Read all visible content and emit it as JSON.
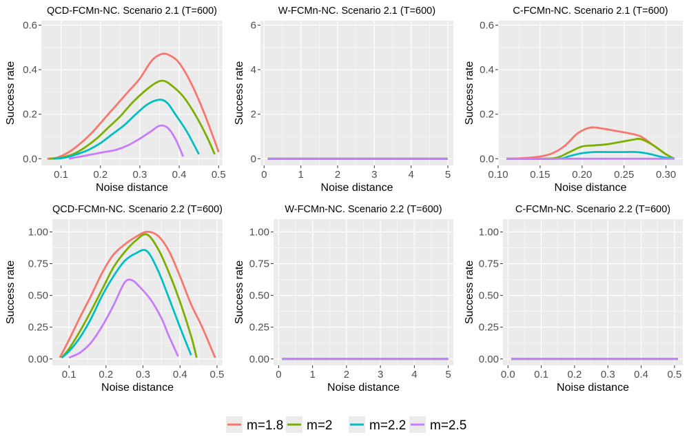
{
  "colors": {
    "m=1.8": "#F8766D",
    "m=2": "#7CAE00",
    "m=2.2": "#00BFC4",
    "m=2.5": "#C77CFF",
    "panel_background": "#EBEBEB",
    "grid": "#FFFFFF",
    "text": "#4D4D4D"
  },
  "legend": {
    "position": "bottom",
    "items": [
      "m=1.8",
      "m=2",
      "m=2.2",
      "m=2.5"
    ]
  },
  "chart_data": [
    {
      "type": "line",
      "title": "QCD-FCMn-NC. Scenario 2.1 (T=600)",
      "xlabel": "Noise distance",
      "ylabel": "Success rate",
      "xlim": [
        0.05,
        0.51
      ],
      "ylim": [
        -0.03,
        0.62
      ],
      "xticks": [
        0.1,
        0.2,
        0.3,
        0.4,
        0.5
      ],
      "xtick_labels": [
        "0.1",
        "0.2",
        "0.3",
        "0.4",
        "0.5"
      ],
      "yticks": [
        0.0,
        0.2,
        0.4,
        0.6
      ],
      "ytick_labels": [
        "0.0",
        "0.2",
        "0.4",
        "0.6"
      ],
      "series": [
        {
          "name": "m=1.8",
          "x": [
            0.065,
            0.09,
            0.12,
            0.15,
            0.18,
            0.21,
            0.24,
            0.27,
            0.3,
            0.33,
            0.355,
            0.375,
            0.4,
            0.43,
            0.46,
            0.49,
            0.5
          ],
          "y": [
            0.0,
            0.005,
            0.03,
            0.07,
            0.12,
            0.18,
            0.24,
            0.3,
            0.36,
            0.44,
            0.47,
            0.465,
            0.43,
            0.34,
            0.22,
            0.08,
            0.03
          ]
        },
        {
          "name": "m=2",
          "x": [
            0.07,
            0.1,
            0.13,
            0.16,
            0.19,
            0.22,
            0.25,
            0.28,
            0.31,
            0.34,
            0.36,
            0.38,
            0.41,
            0.44,
            0.47,
            0.49
          ],
          "y": [
            0.0,
            0.005,
            0.02,
            0.05,
            0.09,
            0.14,
            0.19,
            0.25,
            0.3,
            0.34,
            0.35,
            0.33,
            0.28,
            0.2,
            0.1,
            0.02
          ]
        },
        {
          "name": "m=2.2",
          "x": [
            0.08,
            0.11,
            0.14,
            0.17,
            0.2,
            0.23,
            0.26,
            0.29,
            0.32,
            0.35,
            0.37,
            0.39,
            0.42,
            0.45
          ],
          "y": [
            0.0,
            0.005,
            0.02,
            0.04,
            0.07,
            0.11,
            0.15,
            0.2,
            0.245,
            0.265,
            0.25,
            0.2,
            0.12,
            0.02
          ]
        },
        {
          "name": "m=2.5",
          "x": [
            0.12,
            0.15,
            0.18,
            0.21,
            0.24,
            0.27,
            0.3,
            0.33,
            0.35,
            0.37,
            0.39,
            0.41
          ],
          "y": [
            0.0,
            0.01,
            0.02,
            0.03,
            0.04,
            0.06,
            0.09,
            0.125,
            0.148,
            0.14,
            0.09,
            0.01
          ]
        }
      ]
    },
    {
      "type": "line",
      "title": "W-FCMn-NC. Scenario 2.1 (T=600)",
      "xlabel": "Noise distance",
      "ylabel": "Success rate",
      "xlim": [
        -0.1,
        5.15
      ],
      "ylim": [
        -0.3,
        6.2
      ],
      "xticks": [
        0,
        1,
        2,
        3,
        4,
        5
      ],
      "xtick_labels": [
        "0",
        "1",
        "2",
        "3",
        "4",
        "5"
      ],
      "yticks": [
        0,
        2,
        4,
        6
      ],
      "ytick_labels": [
        "0",
        "2",
        "4",
        "6"
      ],
      "series": [
        {
          "name": "m=1.8",
          "x": [
            0.1,
            5.0
          ],
          "y": [
            0,
            0
          ]
        },
        {
          "name": "m=2",
          "x": [
            0.1,
            5.0
          ],
          "y": [
            0,
            0
          ]
        },
        {
          "name": "m=2.2",
          "x": [
            0.1,
            5.0
          ],
          "y": [
            0,
            0
          ]
        },
        {
          "name": "m=2.5",
          "x": [
            0.1,
            5.0
          ],
          "y": [
            0,
            0
          ]
        }
      ]
    },
    {
      "type": "line",
      "title": "C-FCMn-NC. Scenario 2.1 (T=600)",
      "xlabel": "Noise distance",
      "ylabel": "Success rate",
      "xlim": [
        0.1,
        0.32
      ],
      "ylim": [
        -0.03,
        0.62
      ],
      "xticks": [
        0.1,
        0.15,
        0.2,
        0.25,
        0.3
      ],
      "xtick_labels": [
        "0.10",
        "0.15",
        "0.20",
        "0.25",
        "0.30"
      ],
      "yticks": [
        0.0,
        0.2,
        0.4,
        0.6
      ],
      "ytick_labels": [
        "0.0",
        "0.2",
        "0.4",
        "0.6"
      ],
      "series": [
        {
          "name": "m=1.8",
          "x": [
            0.11,
            0.13,
            0.15,
            0.165,
            0.18,
            0.195,
            0.21,
            0.225,
            0.24,
            0.255,
            0.27,
            0.285,
            0.3,
            0.31
          ],
          "y": [
            0.0,
            0.003,
            0.01,
            0.025,
            0.06,
            0.115,
            0.14,
            0.135,
            0.125,
            0.115,
            0.1,
            0.06,
            0.02,
            0.0
          ]
        },
        {
          "name": "m=2",
          "x": [
            0.11,
            0.15,
            0.17,
            0.185,
            0.2,
            0.215,
            0.23,
            0.245,
            0.26,
            0.27,
            0.285,
            0.3,
            0.31
          ],
          "y": [
            0.0,
            0.0,
            0.005,
            0.03,
            0.055,
            0.06,
            0.065,
            0.075,
            0.085,
            0.088,
            0.06,
            0.02,
            0.0
          ]
        },
        {
          "name": "m=2.2",
          "x": [
            0.11,
            0.17,
            0.185,
            0.2,
            0.215,
            0.23,
            0.25,
            0.265,
            0.28,
            0.295,
            0.31
          ],
          "y": [
            0.0,
            0.0,
            0.012,
            0.025,
            0.03,
            0.03,
            0.03,
            0.03,
            0.022,
            0.008,
            0.0
          ]
        },
        {
          "name": "m=2.5",
          "x": [
            0.11,
            0.31
          ],
          "y": [
            0.0,
            0.0
          ]
        }
      ]
    },
    {
      "type": "line",
      "title": "QCD-FCMn-NC. Scenario 2.2 (T=600)",
      "xlabel": "Noise distance",
      "ylabel": "Success rate",
      "xlim": [
        0.055,
        0.515
      ],
      "ylim": [
        -0.05,
        1.1
      ],
      "xticks": [
        0.1,
        0.2,
        0.3,
        0.4,
        0.5
      ],
      "xtick_labels": [
        "0.1",
        "0.2",
        "0.3",
        "0.4",
        "0.5"
      ],
      "yticks": [
        0.0,
        0.25,
        0.5,
        0.75,
        1.0
      ],
      "ytick_labels": [
        "0.00",
        "0.25",
        "0.50",
        "0.75",
        "1.00"
      ],
      "series": [
        {
          "name": "m=1.8",
          "x": [
            0.075,
            0.1,
            0.13,
            0.16,
            0.19,
            0.22,
            0.25,
            0.28,
            0.31,
            0.34,
            0.37,
            0.4,
            0.43,
            0.46,
            0.495
          ],
          "y": [
            0.01,
            0.15,
            0.33,
            0.5,
            0.68,
            0.82,
            0.9,
            0.96,
            1.0,
            0.97,
            0.85,
            0.65,
            0.43,
            0.25,
            0.01
          ]
        },
        {
          "name": "m=2",
          "x": [
            0.08,
            0.1,
            0.13,
            0.16,
            0.19,
            0.22,
            0.25,
            0.28,
            0.31,
            0.34,
            0.37,
            0.4,
            0.43,
            0.445
          ],
          "y": [
            0.01,
            0.08,
            0.22,
            0.38,
            0.55,
            0.72,
            0.84,
            0.93,
            0.98,
            0.87,
            0.68,
            0.45,
            0.18,
            0.01
          ]
        },
        {
          "name": "m=2.2",
          "x": [
            0.08,
            0.1,
            0.13,
            0.16,
            0.19,
            0.22,
            0.25,
            0.28,
            0.31,
            0.34,
            0.37,
            0.4,
            0.43
          ],
          "y": [
            0.01,
            0.06,
            0.17,
            0.32,
            0.5,
            0.65,
            0.77,
            0.83,
            0.85,
            0.7,
            0.48,
            0.25,
            0.03
          ]
        },
        {
          "name": "m=2.5",
          "x": [
            0.1,
            0.13,
            0.16,
            0.19,
            0.22,
            0.25,
            0.27,
            0.29,
            0.32,
            0.35,
            0.37,
            0.395
          ],
          "y": [
            0.01,
            0.05,
            0.13,
            0.26,
            0.42,
            0.6,
            0.62,
            0.57,
            0.47,
            0.32,
            0.18,
            0.02
          ]
        }
      ]
    },
    {
      "type": "line",
      "title": "W-FCMn-NC. Scenario 2.2 (T=600)",
      "xlabel": "Noise distance",
      "ylabel": "Success rate",
      "xlim": [
        -0.15,
        5.15
      ],
      "ylim": [
        -0.05,
        1.1
      ],
      "xticks": [
        0,
        1,
        2,
        3,
        4,
        5
      ],
      "xtick_labels": [
        "0",
        "1",
        "2",
        "3",
        "4",
        "5"
      ],
      "yticks": [
        0.0,
        0.25,
        0.5,
        0.75,
        1.0
      ],
      "ytick_labels": [
        "0.00",
        "0.25",
        "0.50",
        "0.75",
        "1.00"
      ],
      "series": [
        {
          "name": "m=1.8",
          "x": [
            0.1,
            5.0
          ],
          "y": [
            0,
            0
          ]
        },
        {
          "name": "m=2",
          "x": [
            0.1,
            5.0
          ],
          "y": [
            0,
            0
          ]
        },
        {
          "name": "m=2.2",
          "x": [
            0.1,
            5.0
          ],
          "y": [
            0,
            0
          ]
        },
        {
          "name": "m=2.5",
          "x": [
            0.1,
            5.0
          ],
          "y": [
            0,
            0
          ]
        }
      ]
    },
    {
      "type": "line",
      "title": "C-FCMn-NC. Scenario 2.2 (T=600)",
      "xlabel": "Noise distance",
      "ylabel": "Success rate",
      "xlim": [
        -0.015,
        0.525
      ],
      "ylim": [
        -0.05,
        1.1
      ],
      "xticks": [
        0.0,
        0.1,
        0.2,
        0.3,
        0.4,
        0.5
      ],
      "xtick_labels": [
        "0.0",
        "0.1",
        "0.2",
        "0.3",
        "0.4",
        "0.5"
      ],
      "yticks": [
        0.0,
        0.25,
        0.5,
        0.75,
        1.0
      ],
      "ytick_labels": [
        "0.00",
        "0.25",
        "0.50",
        "0.75",
        "1.00"
      ],
      "series": [
        {
          "name": "m=1.8",
          "x": [
            0.01,
            0.51
          ],
          "y": [
            0,
            0
          ]
        },
        {
          "name": "m=2",
          "x": [
            0.01,
            0.51
          ],
          "y": [
            0,
            0
          ]
        },
        {
          "name": "m=2.2",
          "x": [
            0.01,
            0.51
          ],
          "y": [
            0,
            0
          ]
        },
        {
          "name": "m=2.5",
          "x": [
            0.01,
            0.51
          ],
          "y": [
            0,
            0
          ]
        }
      ]
    }
  ]
}
